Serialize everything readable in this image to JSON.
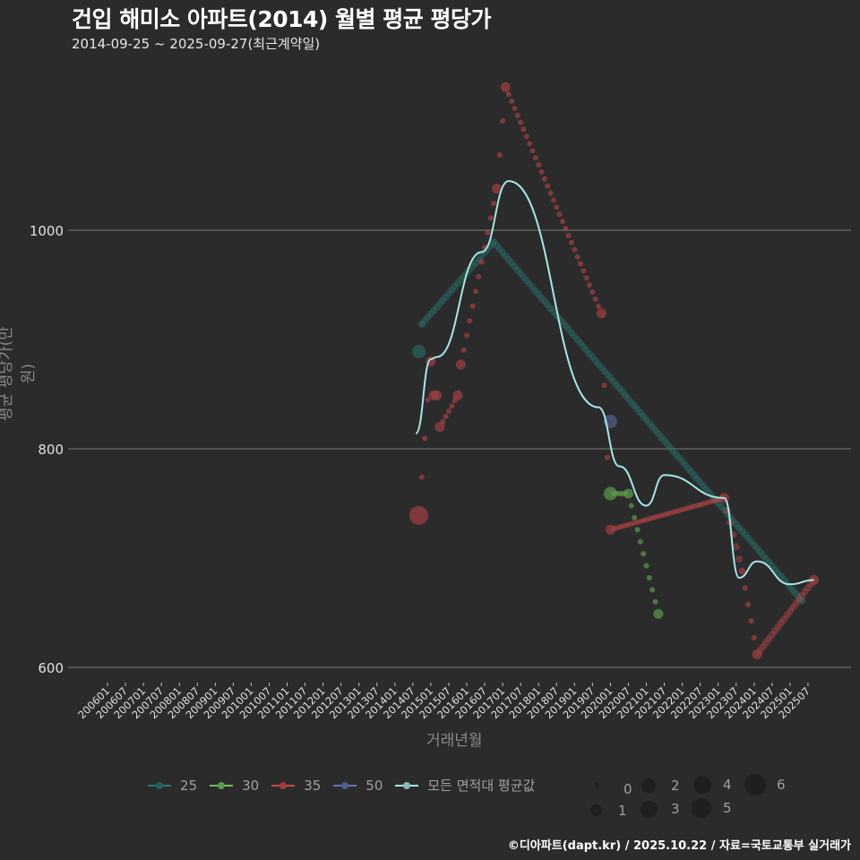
{
  "header": {
    "title": "건입 해미소 아파트(2014) 월별 평균 평당가",
    "subtitle": "2014-09-25 ~ 2025-09-27(최근계약일)"
  },
  "axes": {
    "ylabel": "평균 평당가(만 원)",
    "xlabel": "거래년월"
  },
  "legend": {
    "series": [
      {
        "label": "25",
        "color": "#2a7a72"
      },
      {
        "label": "30",
        "color": "#6fbf5a"
      },
      {
        "label": "35",
        "color": "#c9484c"
      },
      {
        "label": "50",
        "color": "#6275ad"
      },
      {
        "label": "모든 면적대 평균값",
        "color": "#a8e6e6"
      }
    ],
    "sizes": [
      "0",
      "1",
      "2",
      "3",
      "4",
      "5",
      "6"
    ]
  },
  "caption": "©디아파트(dapt.kr) / 2025.10.22 / 자료=국토교통부 실거래가",
  "colors": {
    "background": "#2b2b2c",
    "grid": "#7a7a7a",
    "s25": "#2a7a72",
    "s30": "#6fbf5a",
    "s35": "#c9484c",
    "s50": "#6275ad",
    "avg": "#a8e6e6"
  },
  "chart_data": {
    "type": "line",
    "title": "건입 해미소 아파트(2014) 월별 평균 평당가",
    "subtitle": "2014-09-25 ~ 2025-09-27(최근계약일)",
    "xlabel": "거래년월",
    "ylabel": "평균 평당가(만 원)",
    "ylim": [
      585,
      1145
    ],
    "yticks": [
      600,
      800,
      1000
    ],
    "grid": true,
    "legend_position": "bottom",
    "x_ticks": [
      "200601",
      "200607",
      "200701",
      "200707",
      "200801",
      "200807",
      "200901",
      "200907",
      "201001",
      "201007",
      "201101",
      "201107",
      "201201",
      "201207",
      "201301",
      "201307",
      "201401",
      "201407",
      "201501",
      "201507",
      "201601",
      "201607",
      "201701",
      "201707",
      "201801",
      "201807",
      "201901",
      "201907",
      "202001",
      "202007",
      "202101",
      "202107",
      "202201",
      "202207",
      "202301",
      "202307",
      "202401",
      "202407",
      "202501",
      "202507"
    ],
    "series": [
      {
        "name": "25",
        "points": [
          [
            "2014-09",
            889,
            3
          ],
          [
            "2014-10",
            914,
            1
          ],
          [
            "2016-10",
            989,
            1
          ],
          [
            "2025-05",
            661,
            1
          ]
        ]
      },
      {
        "name": "30",
        "points": [
          [
            "2020-01",
            759,
            3
          ],
          [
            "2020-07",
            759,
            2
          ],
          [
            "2021-05",
            649,
            2
          ]
        ]
      },
      {
        "name": "35",
        "points": [
          [
            "2014-09",
            739,
            4
          ],
          [
            "2015-01",
            880,
            2
          ],
          [
            "2015-02",
            849,
            2
          ],
          [
            "2015-03",
            849,
            2
          ],
          [
            "2015-04",
            820,
            2
          ],
          [
            "2015-10",
            849,
            2
          ],
          [
            "2015-11",
            877,
            2
          ],
          [
            "2016-11",
            1038,
            2
          ],
          [
            "2017-02",
            1131,
            2
          ],
          [
            "2019-10",
            924,
            2
          ],
          [
            "2020-01",
            726,
            2
          ],
          [
            "2023-03",
            755,
            2
          ],
          [
            "2023-09",
            688,
            1
          ],
          [
            "2024-02",
            612,
            2
          ],
          [
            "2025-09",
            680,
            2
          ]
        ]
      },
      {
        "name": "50",
        "points": [
          [
            "2020-01",
            825,
            3
          ]
        ]
      },
      {
        "name": "모든 면적대 평균값",
        "points": [
          [
            "2014-08",
            814
          ],
          [
            "2015-01",
            882
          ],
          [
            "2015-03",
            884
          ],
          [
            "2016-06",
            980
          ],
          [
            "2017-03",
            1045
          ],
          [
            "2019-09",
            838
          ],
          [
            "2020-04",
            784
          ],
          [
            "2021-01",
            748
          ],
          [
            "2021-07",
            776
          ],
          [
            "2023-03",
            755
          ],
          [
            "2023-08",
            682
          ],
          [
            "2024-02",
            697
          ],
          [
            "2025-01",
            676
          ],
          [
            "2025-09",
            680
          ]
        ]
      }
    ]
  }
}
